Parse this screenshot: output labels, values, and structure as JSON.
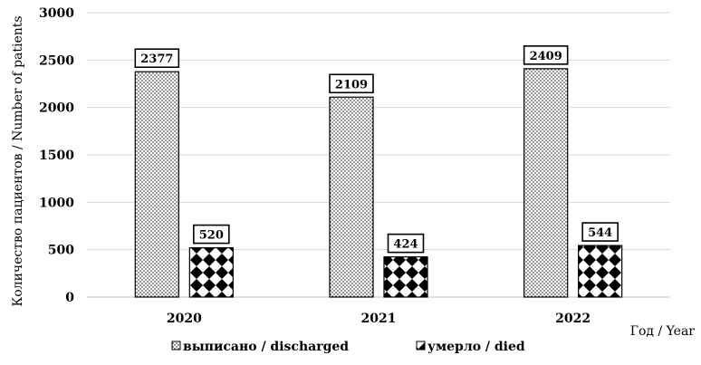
{
  "chart_data": {
    "type": "bar",
    "categories": [
      "2020",
      "2021",
      "2022"
    ],
    "series": [
      {
        "name": "выписано / discharged",
        "values": [
          2377,
          2109,
          2409
        ],
        "pattern": "dots"
      },
      {
        "name": "умерло / died",
        "values": [
          520,
          424,
          544
        ],
        "pattern": "diamonds"
      }
    ],
    "xlabel": "Год / Year",
    "ylabel": "Количество пациентов / Number of patients",
    "ylim": [
      0,
      3000
    ],
    "yticks": [
      0,
      500,
      1000,
      1500,
      2000,
      2500,
      3000
    ],
    "grid": true,
    "legend": "bottom",
    "data_labels": true
  }
}
